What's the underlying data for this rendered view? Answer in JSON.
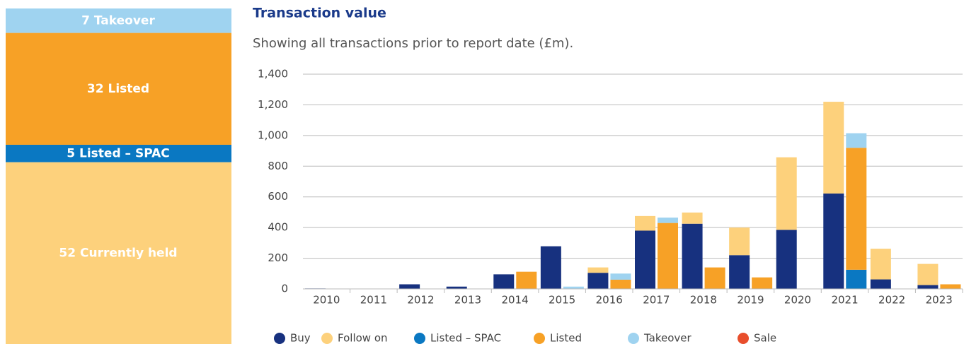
{
  "summary": [
    {
      "value": 7,
      "name": "Takeover",
      "color": "#9fd3f0"
    },
    {
      "value": 32,
      "name": "Listed",
      "color": "#f7a126"
    },
    {
      "value": 5,
      "name": "Listed – SPAC",
      "color": "#0a78c2"
    },
    {
      "value": 52,
      "name": "Currently held",
      "color": "#fdd17c"
    }
  ],
  "chart_data": {
    "type": "bar",
    "title": "Transaction value",
    "subtitle": "Showing all transactions prior to report date (£m).",
    "categories": [
      "2010",
      "2011",
      "2012",
      "2013",
      "2014",
      "2015",
      "2016",
      "2017",
      "2018",
      "2019",
      "2020",
      "2021",
      "2022",
      "2023"
    ],
    "series": [
      {
        "name": "Buy",
        "color": "#17317f",
        "values": [
          3,
          2,
          30,
          15,
          95,
          278,
          105,
          380,
          425,
          220,
          385,
          622,
          62,
          25
        ]
      },
      {
        "name": "Follow on",
        "color": "#fdd17c",
        "values": [
          0,
          0,
          0,
          0,
          0,
          0,
          35,
          95,
          73,
          180,
          473,
          598,
          200,
          138
        ]
      },
      {
        "name": "Listed – SPAC",
        "color": "#0a78c2",
        "values": [
          0,
          0,
          0,
          0,
          0,
          0,
          0,
          0,
          0,
          0,
          0,
          125,
          0,
          0
        ]
      },
      {
        "name": "Listed",
        "color": "#f7a126",
        "values": [
          0,
          0,
          0,
          0,
          112,
          0,
          60,
          430,
          140,
          75,
          0,
          795,
          0,
          30
        ]
      },
      {
        "name": "Takeover",
        "color": "#9fd3f0",
        "values": [
          0,
          0,
          0,
          0,
          0,
          15,
          40,
          35,
          0,
          0,
          0,
          95,
          0,
          0
        ]
      },
      {
        "name": "Sale",
        "color": "#e84e2c",
        "values": [
          0,
          0,
          0,
          0,
          0,
          0,
          0,
          0,
          0,
          0,
          0,
          0,
          0,
          0
        ]
      }
    ],
    "ylim": [
      0,
      1400
    ],
    "yticks": [
      0,
      200,
      400,
      600,
      800,
      {
        "value": 1000,
        "label": "1,000"
      },
      {
        "value": 1200,
        "label": "1,200"
      },
      {
        "value": 1400,
        "label": "1,400"
      }
    ],
    "grid": true
  }
}
